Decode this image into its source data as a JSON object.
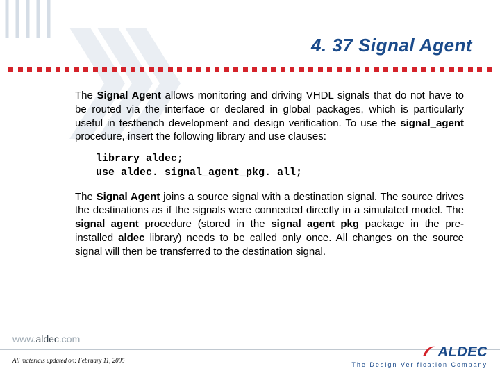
{
  "title": "4. 37  Signal Agent",
  "para1_pre": "The ",
  "para1_bold1": "Signal Agent",
  "para1_mid1": " allows monitoring and driving VHDL signals that do not have to be routed via the interface or declared in global packages, which is particularly useful in testbench development and design verification. To use the ",
  "para1_bold2": "signal_agent",
  "para1_post": " procedure, insert the following library and use clauses:",
  "code_line1": "library aldec;",
  "code_line2": "use aldec. signal_agent_pkg. all;",
  "para2_pre": "The ",
  "para2_bold1": "Signal Agent",
  "para2_mid1": " joins a source signal with a destination signal. The source drives the destinations as if the signals were connected directly in a simulated model. The ",
  "para2_bold2": "signal_agent",
  "para2_mid2": " procedure (stored in the ",
  "para2_bold3": "signal_agent_pkg",
  "para2_mid3": " package in the pre-installed ",
  "para2_bold4": "aldec",
  "para2_post": " library) needs to be called only once. All changes on the source signal will then be transferred to the destination signal.",
  "footer": {
    "url_light": "www.",
    "url_mid": "aldec",
    "url_end": ".com",
    "updated": "All materials updated on: February 11, 2005",
    "brand": "ALDEC",
    "tagline": "The Design Verification Company"
  },
  "style": {
    "title_color": "#1a4a8a",
    "dot_color": "#d4222a",
    "text_color": "#000000",
    "url_muted": "#9aa6b0",
    "logo_color": "#1a4a8a",
    "background": "#ffffff",
    "title_fontsize": 26,
    "body_fontsize": 15,
    "code_fontsize": 15,
    "dot_count": 52
  }
}
